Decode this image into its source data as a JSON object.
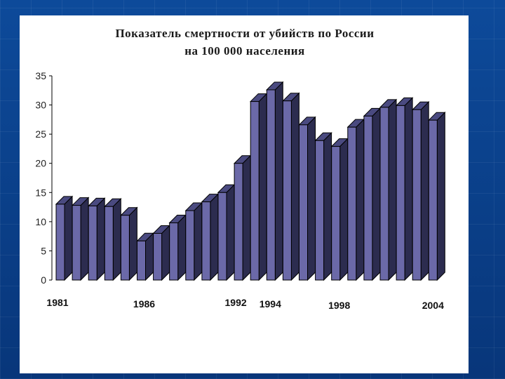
{
  "chart_data": {
    "type": "bar",
    "title": [
      "Показатель смертности от убийств по России",
      "на 100 000 населения"
    ],
    "xlabel": "",
    "ylabel": "",
    "ylim": [
      0,
      35
    ],
    "yticks": [
      0,
      5,
      10,
      15,
      20,
      25,
      30,
      35
    ],
    "x_tick_labels": [
      {
        "label": "1981",
        "index": 0
      },
      {
        "label": "1986",
        "index": 5
      },
      {
        "label": "1992",
        "index": 11
      },
      {
        "label": "1994",
        "index": 13
      },
      {
        "label": "1998",
        "index": 17
      },
      {
        "label": "2004",
        "index": 23
      }
    ],
    "values": [
      13.0,
      12.8,
      12.7,
      12.6,
      11.1,
      6.7,
      8.0,
      9.8,
      11.9,
      13.4,
      15.0,
      20.0,
      30.6,
      32.6,
      30.7,
      26.6,
      23.9,
      22.9,
      26.2,
      28.1,
      29.6,
      29.9,
      29.2,
      27.4
    ],
    "grid": false,
    "legend": "none",
    "colors": {
      "front": "#6b69a8",
      "side": "#2c2c4f",
      "top": "#4a4a80",
      "outline": "#000000"
    }
  }
}
